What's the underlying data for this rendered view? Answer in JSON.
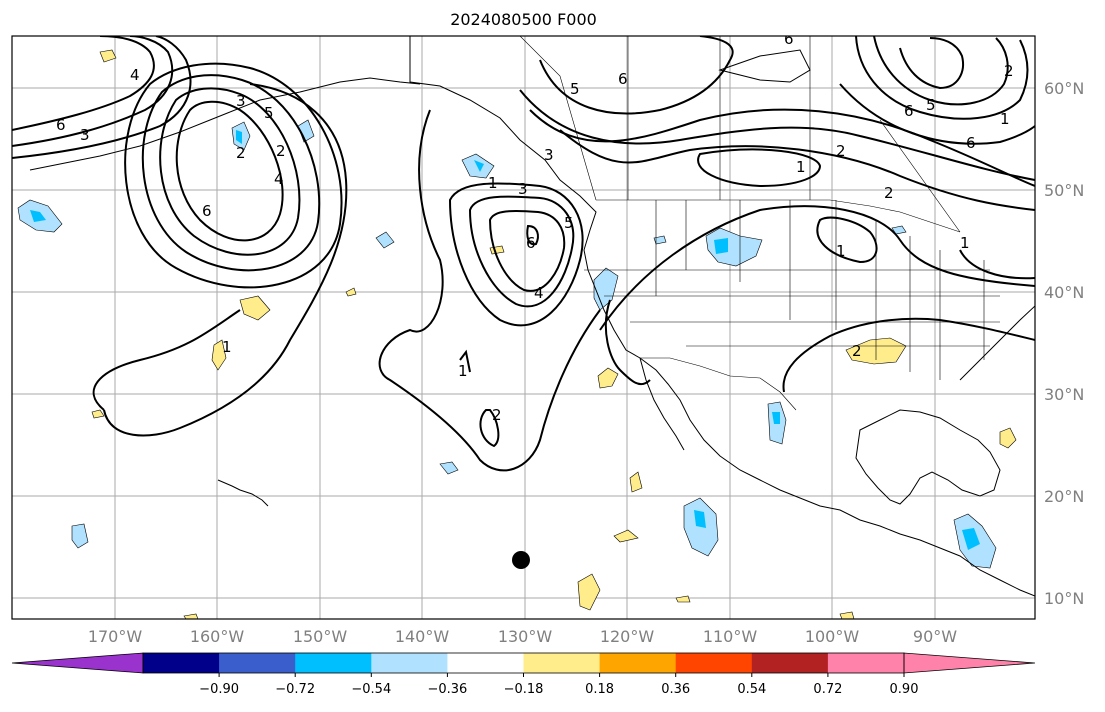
{
  "title": "2024080500 F000",
  "map": {
    "lon_labels": [
      "170°W",
      "160°W",
      "150°W",
      "140°W",
      "130°W",
      "120°W",
      "110°W",
      "100°W",
      "90°W"
    ],
    "lat_labels": [
      "60°N",
      "50°N",
      "40°N",
      "30°N",
      "20°N",
      "10°N"
    ],
    "contour_labels": [
      "6",
      "3",
      "4",
      "3",
      "5",
      "2",
      "4",
      "6",
      "2",
      "1",
      "6",
      "5",
      "6",
      "3",
      "1",
      "3",
      "5",
      "4",
      "6",
      "1",
      "2",
      "1",
      "2",
      "6",
      "5",
      "6",
      "1",
      "2",
      "1",
      "2",
      "2",
      "1"
    ]
  },
  "colorbar": {
    "ticks": [
      "−0.90",
      "−0.72",
      "−0.54",
      "−0.36",
      "−0.18",
      "0.18",
      "0.36",
      "0.54",
      "0.72",
      "0.90"
    ],
    "colors": {
      "under": "#9a32cd",
      "bins": [
        "#00008b",
        "#3a5fcd",
        "#00bfff",
        "#b0e2ff",
        "#ffffff",
        "#ffec8b",
        "#ffa500",
        "#ff4500",
        "#b22222",
        "#ff82ab"
      ],
      "over": "#ff82ab"
    }
  },
  "colors": {
    "grid": "#aaaaaa",
    "coast": "#000000",
    "positive_fill": "#ffec8b",
    "negative_fill": "#b0e2ff",
    "strong_negative_fill": "#00bfff",
    "marker": "#000000"
  }
}
